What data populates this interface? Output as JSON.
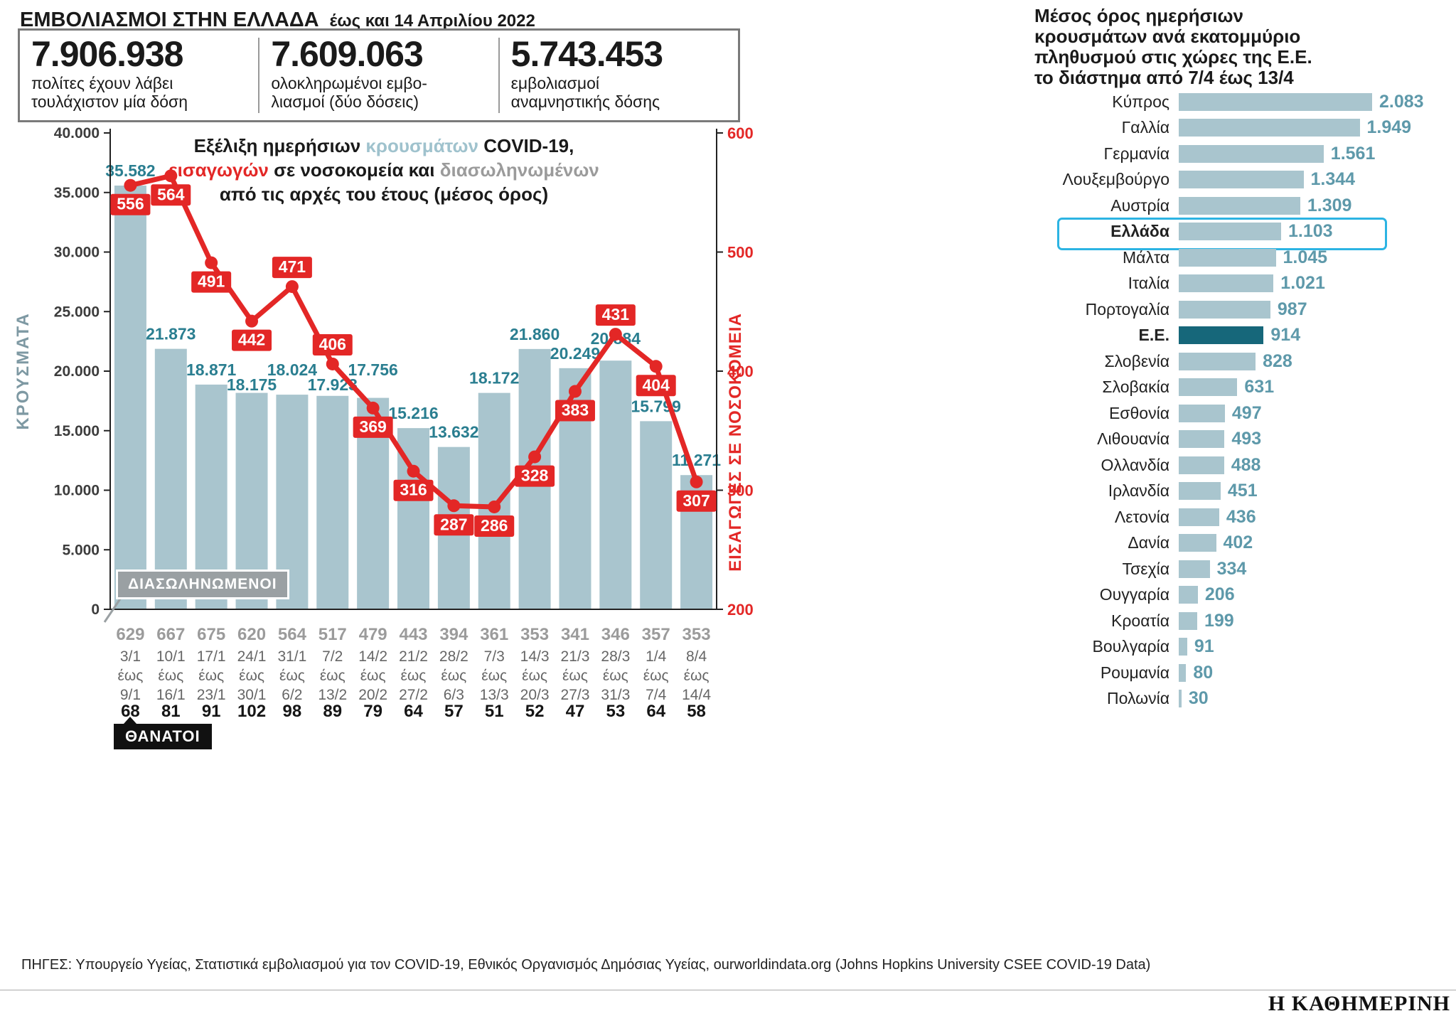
{
  "header": {
    "title": "ΕΜΒΟΛΙΑΣΜΟΙ ΣΤΗΝ ΕΛΛΑΔΑ",
    "subtitle": "έως και 14 Απριλίου 2022",
    "stats": [
      {
        "value": "7.906.938",
        "label": "πολίτες έχουν λάβει τουλάχιστον μία δόση"
      },
      {
        "value": "7.609.063",
        "label": "ολοκληρωμένοι εμβο-λιασμοί (δύο δόσεις)"
      },
      {
        "value": "5.743.453",
        "label": "εμβολιασμοί αναμνηστικής δόσης"
      }
    ]
  },
  "combo_title": {
    "l1a": "Εξέλιξη ημερήσιων ",
    "l1b": "κρουσμάτων",
    "l1c": " COVID-19,",
    "l2a": "εισαγωγών",
    "l2b": " σε νοσοκομεία και ",
    "l2c": "διασωληνωμένων",
    "l3": "από τις αρχές του έτους (μέσος όρος)"
  },
  "chart_data": [
    {
      "type": "bar+line",
      "title": "Εξέλιξη ημερήσιων κρουσμάτων COVID-19, εισαγωγών σε νοσοκομεία και διασωληνωμένων από τις αρχές του έτους (μέσος όρος)",
      "range_word": "έως",
      "categories": [
        {
          "from": "3/1",
          "to": "9/1"
        },
        {
          "from": "10/1",
          "to": "16/1"
        },
        {
          "from": "17/1",
          "to": "23/1"
        },
        {
          "from": "24/1",
          "to": "30/1"
        },
        {
          "from": "31/1",
          "to": "6/2"
        },
        {
          "from": "7/2",
          "to": "13/2"
        },
        {
          "from": "14/2",
          "to": "20/2"
        },
        {
          "from": "21/2",
          "to": "27/2"
        },
        {
          "from": "28/2",
          "to": "6/3"
        },
        {
          "from": "7/3",
          "to": "13/3"
        },
        {
          "from": "14/3",
          "to": "20/3"
        },
        {
          "from": "21/3",
          "to": "27/3"
        },
        {
          "from": "28/3",
          "to": "31/3"
        },
        {
          "from": "1/4",
          "to": "7/4"
        },
        {
          "from": "8/4",
          "to": "14/4"
        }
      ],
      "series": [
        {
          "name": "κρούσματα",
          "type": "bar",
          "axis": "left",
          "values": [
            35582,
            21873,
            18871,
            18175,
            18024,
            17923,
            17756,
            15216,
            13632,
            18172,
            21860,
            20249,
            20884,
            15799,
            11271
          ],
          "labels": [
            "35.582",
            "21.873",
            "18.871",
            "18.175",
            "18.024",
            "17.923",
            "17.756",
            "15.216",
            "13.632",
            "18.172",
            "21.860",
            "20.249",
            "20.884",
            "15.799",
            "11.271"
          ]
        },
        {
          "name": "εισαγωγές σε νοσοκομεία",
          "type": "line",
          "axis": "right",
          "values": [
            556,
            564,
            491,
            442,
            471,
            406,
            369,
            316,
            287,
            286,
            328,
            383,
            431,
            404,
            307
          ]
        },
        {
          "name": "διασωληνωμένοι",
          "type": "row-top",
          "values": [
            629,
            667,
            675,
            620,
            564,
            517,
            479,
            443,
            394,
            361,
            353,
            341,
            346,
            357,
            353
          ]
        },
        {
          "name": "θάνατοι",
          "type": "row-bottom",
          "values": [
            68,
            81,
            91,
            102,
            98,
            89,
            79,
            64,
            57,
            51,
            52,
            47,
            53,
            64,
            58
          ]
        }
      ],
      "left_axis": {
        "label": "ΚΡΟΥΣΜΑΤΑ",
        "min": 0,
        "max": 40000,
        "tick_step": 5000,
        "tick_labels": [
          "0",
          "5.000",
          "10.000",
          "15.000",
          "20.000",
          "25.000",
          "30.000",
          "35.000",
          "40.000"
        ]
      },
      "right_axis": {
        "label": "ΕΙΣΑΓΩΓΕΣ ΣΕ ΝΟΣΟΚΟΜΕΙΑ",
        "min": 200,
        "max": 600,
        "tick_step": 100,
        "tick_labels": [
          "200",
          "300",
          "400",
          "500",
          "600"
        ]
      },
      "line_label_side": [
        "below",
        "below",
        "below",
        "below",
        "above",
        "above",
        "below",
        "below",
        "below",
        "below",
        "below",
        "below",
        "above",
        "below",
        "below"
      ],
      "annotations": {
        "intubated": "ΔΙΑΣΩΛΗΝΩΜΕΝΟΙ",
        "deaths": "ΘΑΝΑΤΟΙ"
      },
      "grid": "off"
    },
    {
      "type": "bar",
      "orientation": "horizontal",
      "title": "Μέσος όρος ημερήσιων κρουσμάτων ανά εκατομμύριο πληθυσμού στις χώρες της Ε.Ε. το διάστημα από 7/4 έως 13/4",
      "title_lines": [
        "Μέσος όρος ημερήσιων",
        "κρουσμάτων ανά εκατομμύριο",
        "πληθυσμού στις χώρες της Ε.Ε.",
        "το διάστημα από 7/4 έως 13/4"
      ],
      "categories": [
        "Κύπρος",
        "Γαλλία",
        "Γερμανία",
        "Λουξεμβούργο",
        "Αυστρία",
        "Ελλάδα",
        "Μάλτα",
        "Ιταλία",
        "Πορτογαλία",
        "Ε.Ε.",
        "Σλοβενία",
        "Σλοβακία",
        "Εσθονία",
        "Λιθουανία",
        "Ολλανδία",
        "Ιρλανδία",
        "Λετονία",
        "Δανία",
        "Τσεχία",
        "Ουγγαρία",
        "Κροατία",
        "Βουλγαρία",
        "Ρουμανία",
        "Πολωνία"
      ],
      "values": [
        2083,
        1949,
        1561,
        1344,
        1309,
        1103,
        1045,
        1021,
        987,
        914,
        828,
        631,
        497,
        493,
        488,
        451,
        436,
        402,
        334,
        206,
        199,
        91,
        80,
        30
      ],
      "value_labels": [
        "2.083",
        "1.949",
        "1.561",
        "1.344",
        "1.309",
        "1.103",
        "1.045",
        "1.021",
        "987",
        "914",
        "828",
        "631",
        "497",
        "493",
        "488",
        "451",
        "436",
        "402",
        "334",
        "206",
        "199",
        "91",
        "80",
        "30"
      ],
      "highlight": "Ελλάδα",
      "emphasis": "Ε.Ε.",
      "xlim": [
        0,
        2083
      ]
    }
  ],
  "colors": {
    "bar": "#a9c5ce",
    "red": "#e32726",
    "teal_dark": "#16677a",
    "bar_label": "#2a7e90",
    "value_teal": "#5e99aa",
    "gray": "#9b9b9b",
    "highlight_border": "#2cb4e3"
  },
  "footer": {
    "sources": "ΠΗΓΕΣ: Υπουργείο Υγείας, Στατιστικά εμβολιασμού για τον COVID-19, Εθνικός Οργανισμός Δημόσιας Υγείας, ourworldindata.org (Johns Hopkins University CSEE COVID-19 Data)",
    "logo": "Η ΚΑΘΗΜΕΡΙΝΗ"
  }
}
